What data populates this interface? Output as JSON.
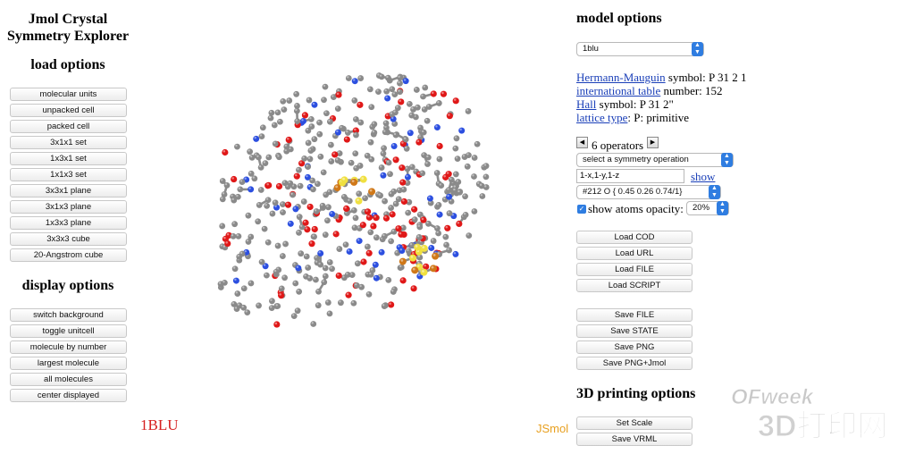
{
  "app": {
    "title_line1": "Jmol Crystal",
    "title_line2": "Symmetry Explorer"
  },
  "load_options": {
    "title": "load options",
    "buttons": [
      "molecular units",
      "unpacked cell",
      "packed cell",
      "3x1x1 set",
      "1x3x1 set",
      "1x1x3 set",
      "3x3x1 plane",
      "3x1x3 plane",
      "1x3x3 plane",
      "3x3x3 cube",
      "20-Angstrom cube"
    ]
  },
  "display_options": {
    "title": "display options",
    "buttons": [
      "switch background",
      "toggle unitcell",
      "molecule by number",
      "largest molecule",
      "all molecules",
      "center displayed"
    ]
  },
  "viewer": {
    "molecule_label": "1BLU",
    "logo": "JSmol"
  },
  "model_options": {
    "title": "model options",
    "model_select": "1blu",
    "hm_link": "Hermann-Mauguin",
    "hm_rest": " symbol: P 31 2 1",
    "it_link": "international table",
    "it_rest": " number: 152",
    "hall_link": "Hall",
    "hall_rest": " symbol: P 31 2\"",
    "lattice_link": "lattice type",
    "lattice_rest": ": P: primitive",
    "operators_label": "6 operators",
    "symop_select": "select a symmetry operation",
    "symop_value": "1-x,1-y,1-z",
    "show_link": "show",
    "atom_select": "#212 O { 0.45 0.26 0.74/1}",
    "show_atoms_label": "show atoms opacity:",
    "opacity_select": "20%",
    "load_buttons": [
      "Load COD",
      "Load URL",
      "Load FILE",
      "Load SCRIPT"
    ],
    "save_buttons": [
      "Save FILE",
      "Save STATE",
      "Save PNG",
      "Save PNG+Jmol"
    ]
  },
  "printing_options": {
    "title": "3D printing options",
    "buttons": [
      "Set Scale",
      "Save VRML"
    ]
  },
  "watermark": {
    "brand": "OFweek",
    "text": "3D打印网"
  },
  "colors": {
    "carbon": "#8a8a8a",
    "oxygen": "#e01818",
    "nitrogen": "#2c4fe0",
    "sulfur": "#f0e040",
    "iron": "#d07818",
    "link": "#1a3fb8",
    "accent": "#2f7de1"
  }
}
